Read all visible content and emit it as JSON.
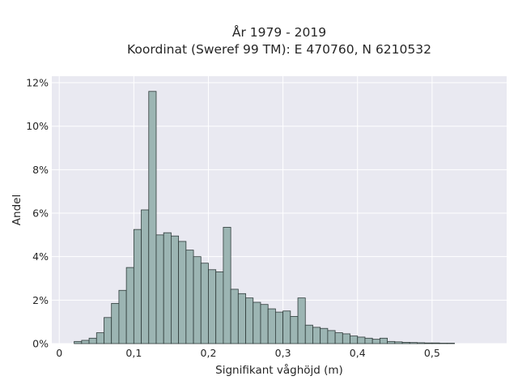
{
  "chart_data": {
    "type": "bar",
    "subtype": "histogram",
    "title_line1": "År 1979 - 2019",
    "title_line2": "Koordinat (Sweref 99 TM): E 470760, N 6210532",
    "xlabel": "Signifikant våghöjd (m)",
    "ylabel": "Andel",
    "xlim": [
      -0.01,
      0.6
    ],
    "ylim": [
      0,
      12.3
    ],
    "x_ticks": [
      0,
      0.1,
      0.2,
      0.3,
      0.4,
      0.5
    ],
    "x_tick_labels": [
      "0",
      "0,1",
      "0,2",
      "0,3",
      "0,4",
      "0,5"
    ],
    "y_ticks": [
      0,
      2,
      4,
      6,
      8,
      10,
      12
    ],
    "y_tick_labels": [
      "0%",
      "2%",
      "4%",
      "6%",
      "8%",
      "10%",
      "12%"
    ],
    "bin_width": 0.01,
    "bin_start": 0.02,
    "values": [
      0.1,
      0.15,
      0.25,
      0.5,
      1.2,
      1.85,
      2.45,
      3.5,
      5.25,
      6.15,
      11.6,
      5.0,
      5.1,
      4.95,
      4.7,
      4.3,
      4.0,
      3.7,
      3.4,
      3.3,
      5.35,
      2.5,
      2.3,
      2.1,
      1.9,
      1.8,
      1.6,
      1.45,
      1.5,
      1.25,
      2.1,
      0.85,
      0.75,
      0.7,
      0.6,
      0.5,
      0.45,
      0.35,
      0.3,
      0.25,
      0.2,
      0.25,
      0.1,
      0.08,
      0.06,
      0.05,
      0.04,
      0.03,
      0.03,
      0.02,
      0.02
    ],
    "grid": true,
    "colors": {
      "bar_fill": "#9cb5b3",
      "bar_edge": "#2f3b3a",
      "plot_background": "#e9e9f1",
      "grid": "#ffffff"
    }
  }
}
